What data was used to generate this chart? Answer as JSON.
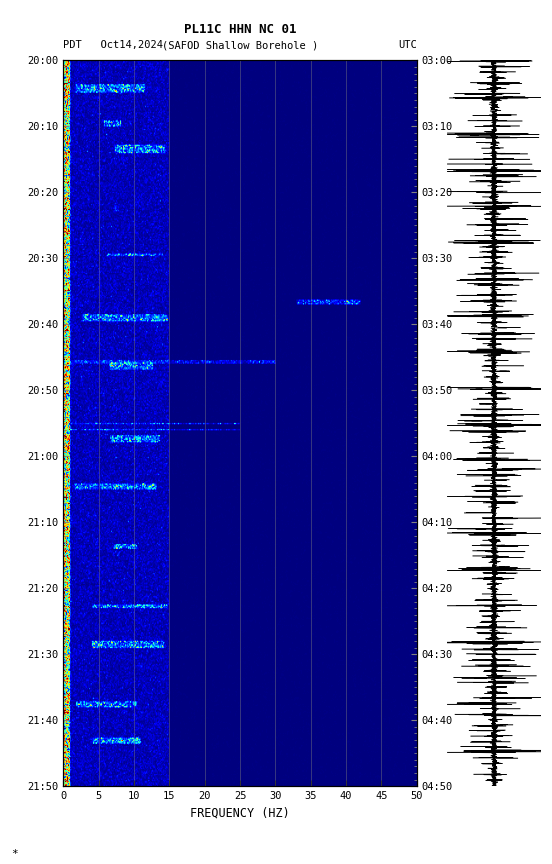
{
  "title_line1": "PL11C HHN NC 01",
  "title_line2_left": "PDT   Oct14,2024",
  "title_line2_center": "(SAFOD Shallow Borehole )",
  "title_line2_right": "UTC",
  "ylabel_left_times": [
    "20:00",
    "20:10",
    "20:20",
    "20:30",
    "20:40",
    "20:50",
    "21:00",
    "21:10",
    "21:20",
    "21:30",
    "21:40",
    "21:50"
  ],
  "ylabel_right_times": [
    "03:00",
    "03:10",
    "03:20",
    "03:30",
    "03:40",
    "03:50",
    "04:00",
    "04:10",
    "04:20",
    "04:30",
    "04:40",
    "04:50"
  ],
  "xlabel": "FREQUENCY (HZ)",
  "freq_min": 0,
  "freq_max": 50,
  "freq_ticks": [
    0,
    5,
    10,
    15,
    20,
    25,
    30,
    35,
    40,
    45,
    50
  ],
  "time_steps": 600,
  "freq_steps": 500,
  "colormap": "jet",
  "vmin": 0,
  "vmax": 18
}
